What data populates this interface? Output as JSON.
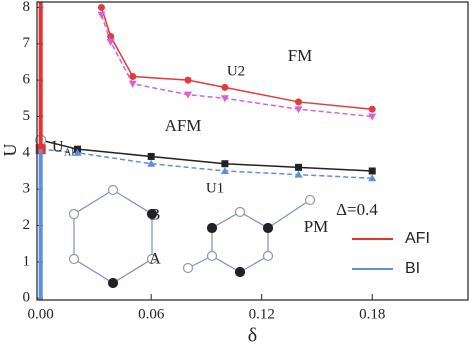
{
  "chart_data": {
    "type": "line",
    "xlabel": "δ",
    "ylabel": "U",
    "xlim": [
      -0.002,
      0.232
    ],
    "ylim": [
      -0.05,
      8.15
    ],
    "xticks": [
      {
        "value": 0,
        "label": "0.00"
      },
      0.06,
      0.12,
      0.18
    ],
    "yticks": [
      0,
      1,
      2,
      3,
      4,
      5,
      6,
      7,
      8
    ],
    "annotations": [
      "FM",
      "U2",
      "AFM",
      "U",
      "AF",
      "U1",
      "PM",
      "Δ=0.4",
      "B",
      "A"
    ],
    "series": [
      {
        "color": "#e23b3b",
        "marker": "circle",
        "dashed": false,
        "x": [
          0.033,
          0.038,
          0.05,
          0.08,
          0.1,
          0.14,
          0.18
        ],
        "values": [
          8.0,
          7.2,
          6.1,
          6.0,
          5.8,
          5.4,
          5.2
        ]
      },
      {
        "color": "#d860d8",
        "marker": "triangle-down",
        "dashed": true,
        "x": [
          0.033,
          0.038,
          0.05,
          0.08,
          0.1,
          0.14,
          0.18
        ],
        "values": [
          7.8,
          7.05,
          5.9,
          5.6,
          5.5,
          5.2,
          5.0
        ]
      },
      {
        "color": "#222222",
        "marker": "square",
        "dashed": false,
        "x": [
          0,
          0.02,
          0.06,
          0.1,
          0.14,
          0.18
        ],
        "values": [
          4.35,
          4.1,
          3.9,
          3.7,
          3.6,
          3.5
        ]
      },
      {
        "color": "#5b8fe0",
        "marker": "triangle-up",
        "dashed": true,
        "x": [
          0,
          0.02,
          0.06,
          0.1,
          0.14,
          0.18
        ],
        "values": [
          4.1,
          4.0,
          3.7,
          3.5,
          3.4,
          3.3
        ]
      },
      {
        "name": "AFI",
        "color": "#e83030",
        "marker": "none",
        "dashed": false,
        "width": 4,
        "x": [
          0,
          0
        ],
        "values": [
          4.1,
          8.15
        ]
      },
      {
        "name": "BI",
        "color": "#5b8fe0",
        "marker": "none",
        "dashed": false,
        "width": 4,
        "x": [
          0,
          0
        ],
        "values": [
          -0.05,
          4.1
        ]
      }
    ]
  }
}
